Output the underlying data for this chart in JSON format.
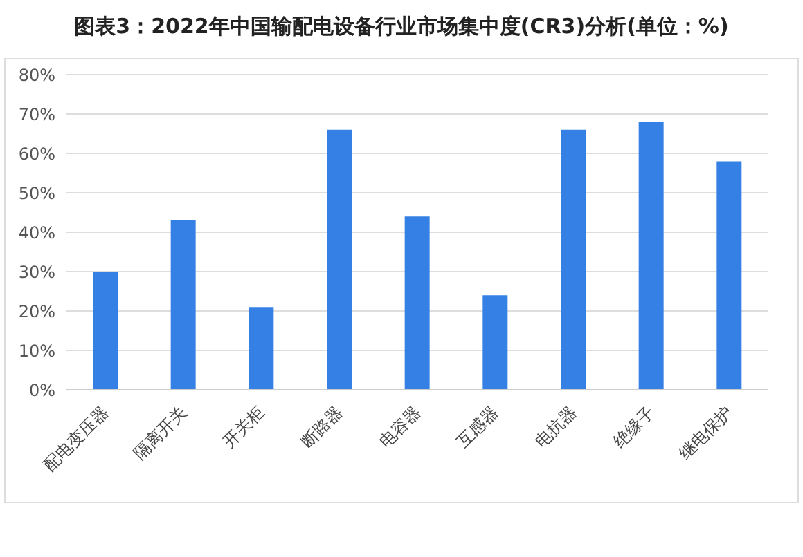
{
  "chart_data": {
    "type": "bar",
    "title": "图表3：2022年中国输配电设备行业市场集中度(CR3)分析(单位：%)",
    "categories": [
      "配电变压器",
      "隔离开关",
      "开关柜",
      "断路器",
      "电容器",
      "互感器",
      "电抗器",
      "绝缘子",
      "继电保护"
    ],
    "values": [
      30,
      43,
      21,
      66,
      44,
      24,
      66,
      68,
      58
    ],
    "color": "#3580e4",
    "ylim": [
      0,
      80
    ],
    "yticks": [
      {
        "value": 0,
        "label": "0%"
      },
      {
        "value": 10,
        "label": "10%"
      },
      {
        "value": 20,
        "label": "20%"
      },
      {
        "value": 30,
        "label": "30%"
      },
      {
        "value": 40,
        "label": "40%"
      },
      {
        "value": 50,
        "label": "50%"
      },
      {
        "value": 60,
        "label": "60%"
      },
      {
        "value": 70,
        "label": "70%"
      },
      {
        "value": 80,
        "label": "80%"
      }
    ],
    "grid": "y",
    "legend": false
  }
}
